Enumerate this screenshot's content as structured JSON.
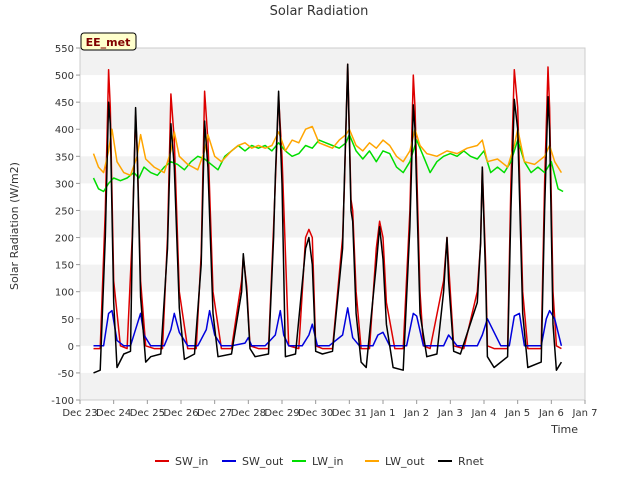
{
  "chart_data": {
    "type": "line",
    "title": "Solar Radiation",
    "xlabel": "Time",
    "ylabel": "Solar Radiation (W/m2)",
    "ylim": [
      -100,
      550
    ],
    "yticks": [
      -100,
      -50,
      0,
      50,
      100,
      150,
      200,
      250,
      300,
      350,
      400,
      450,
      500,
      550
    ],
    "xlim": [
      0,
      15
    ],
    "xticks": [
      {
        "pos": 0,
        "label": "Dec 23"
      },
      {
        "pos": 1,
        "label": "Dec 24"
      },
      {
        "pos": 2,
        "label": "Dec 25"
      },
      {
        "pos": 3,
        "label": "Dec 26"
      },
      {
        "pos": 4,
        "label": "Dec 27"
      },
      {
        "pos": 5,
        "label": "Dec 28"
      },
      {
        "pos": 6,
        "label": "Dec 29"
      },
      {
        "pos": 7,
        "label": "Dec 30"
      },
      {
        "pos": 8,
        "label": "Dec 31"
      },
      {
        "pos": 9,
        "label": "Jan 1"
      },
      {
        "pos": 10,
        "label": "Jan 2"
      },
      {
        "pos": 11,
        "label": "Jan 3"
      },
      {
        "pos": 12,
        "label": "Jan 4"
      },
      {
        "pos": 13,
        "label": "Jan 5"
      },
      {
        "pos": 14,
        "label": "Jan 6"
      },
      {
        "pos": 15,
        "label": "Jan 7"
      }
    ],
    "grid": "horizontal bands",
    "legend": "bottom",
    "annotation": "EE_met",
    "series": [
      {
        "name": "SW_in",
        "color": "#dd0000",
        "x": [
          0.4,
          0.6,
          0.75,
          0.85,
          0.9,
          1.0,
          1.2,
          1.4,
          1.55,
          1.65,
          1.7,
          1.8,
          1.95,
          2.2,
          2.45,
          2.6,
          2.7,
          2.8,
          2.95,
          3.2,
          3.45,
          3.6,
          3.7,
          3.8,
          3.95,
          4.2,
          4.5,
          4.8,
          4.85,
          4.95,
          5.05,
          5.3,
          5.6,
          5.75,
          5.8,
          5.9,
          6.0,
          6.2,
          6.5,
          6.7,
          6.8,
          6.9,
          7.0,
          7.2,
          7.5,
          7.8,
          7.85,
          7.95,
          8.05,
          8.1,
          8.2,
          8.35,
          8.6,
          8.8,
          8.9,
          9.0,
          9.1,
          9.35,
          9.6,
          9.8,
          9.9,
          9.95,
          10.1,
          10.2,
          10.4,
          10.8,
          10.9,
          10.95,
          11.1,
          11.4,
          11.8,
          11.9,
          11.95,
          12.05,
          12.1,
          12.3,
          12.7,
          12.8,
          12.9,
          13.0,
          13.15,
          13.3,
          13.7,
          13.8,
          13.9,
          13.95,
          14.05,
          14.15,
          14.3
        ],
        "y": [
          -5,
          -5,
          250,
          510,
          440,
          120,
          0,
          -5,
          200,
          425,
          360,
          120,
          0,
          -5,
          -5,
          200,
          465,
          380,
          100,
          -5,
          -5,
          170,
          470,
          380,
          100,
          -5,
          -5,
          120,
          165,
          110,
          0,
          -5,
          -5,
          220,
          300,
          460,
          350,
          0,
          -5,
          200,
          215,
          200,
          0,
          -5,
          -5,
          200,
          290,
          520,
          270,
          250,
          100,
          -5,
          -5,
          180,
          230,
          200,
          80,
          -5,
          -5,
          250,
          500,
          440,
          100,
          0,
          -5,
          120,
          200,
          150,
          0,
          -5,
          100,
          190,
          330,
          150,
          0,
          -5,
          -5,
          300,
          510,
          440,
          100,
          -5,
          -5,
          300,
          515,
          440,
          100,
          0,
          -5
        ]
      },
      {
        "name": "SW_out",
        "color": "#0000dd",
        "x": [
          0.4,
          0.7,
          0.85,
          0.95,
          1.1,
          1.3,
          1.5,
          1.7,
          1.8,
          1.9,
          2.1,
          2.5,
          2.7,
          2.8,
          2.95,
          3.2,
          3.5,
          3.75,
          3.85,
          4.0,
          4.2,
          4.5,
          4.9,
          5.0,
          5.1,
          5.5,
          5.8,
          5.95,
          6.05,
          6.2,
          6.6,
          6.8,
          6.9,
          7.05,
          7.4,
          7.8,
          7.95,
          8.1,
          8.3,
          8.7,
          8.85,
          9.0,
          9.2,
          9.7,
          9.9,
          10.0,
          10.2,
          10.8,
          10.95,
          11.2,
          11.8,
          11.95,
          12.1,
          12.5,
          12.75,
          12.9,
          13.05,
          13.2,
          13.7,
          13.85,
          13.95,
          14.1,
          14.3
        ],
        "y": [
          0,
          0,
          60,
          65,
          10,
          0,
          0,
          40,
          60,
          20,
          0,
          0,
          30,
          60,
          25,
          0,
          0,
          30,
          65,
          20,
          0,
          0,
          5,
          15,
          0,
          0,
          20,
          65,
          20,
          0,
          0,
          20,
          40,
          0,
          0,
          20,
          70,
          15,
          0,
          0,
          20,
          25,
          0,
          0,
          60,
          55,
          0,
          0,
          20,
          0,
          0,
          20,
          50,
          0,
          0,
          55,
          60,
          0,
          0,
          50,
          65,
          50,
          0
        ]
      },
      {
        "name": "LW_in",
        "color": "#00dd00",
        "x": [
          0.4,
          0.55,
          0.7,
          0.85,
          1.0,
          1.2,
          1.4,
          1.6,
          1.75,
          1.9,
          2.1,
          2.3,
          2.5,
          2.7,
          2.9,
          3.1,
          3.3,
          3.5,
          3.7,
          3.9,
          4.1,
          4.3,
          4.5,
          4.7,
          4.9,
          5.1,
          5.3,
          5.5,
          5.7,
          5.9,
          6.1,
          6.3,
          6.5,
          6.7,
          6.9,
          7.1,
          7.3,
          7.5,
          7.7,
          7.9,
          8.0,
          8.2,
          8.4,
          8.6,
          8.8,
          9.0,
          9.2,
          9.4,
          9.6,
          9.8,
          10.0,
          10.2,
          10.4,
          10.6,
          10.8,
          11.0,
          11.2,
          11.4,
          11.6,
          11.8,
          12.0,
          12.2,
          12.4,
          12.6,
          12.8,
          13.0,
          13.2,
          13.4,
          13.6,
          13.8,
          14.0,
          14.2,
          14.35
        ],
        "y": [
          310,
          290,
          285,
          300,
          310,
          305,
          310,
          320,
          310,
          330,
          320,
          315,
          330,
          340,
          335,
          325,
          340,
          350,
          345,
          335,
          325,
          350,
          360,
          370,
          360,
          370,
          365,
          370,
          360,
          375,
          360,
          350,
          355,
          370,
          365,
          380,
          375,
          370,
          365,
          375,
          390,
          360,
          345,
          360,
          340,
          360,
          355,
          330,
          320,
          340,
          380,
          350,
          320,
          340,
          350,
          355,
          350,
          360,
          350,
          345,
          360,
          320,
          330,
          320,
          340,
          380,
          340,
          320,
          330,
          320,
          340,
          290,
          285
        ]
      },
      {
        "name": "LW_out",
        "color": "#ffa500",
        "x": [
          0.4,
          0.55,
          0.7,
          0.85,
          0.95,
          1.1,
          1.3,
          1.5,
          1.7,
          1.8,
          1.95,
          2.2,
          2.5,
          2.7,
          2.8,
          2.95,
          3.2,
          3.5,
          3.7,
          3.8,
          4.0,
          4.2,
          4.5,
          4.7,
          4.9,
          5.1,
          5.3,
          5.5,
          5.7,
          5.9,
          6.1,
          6.3,
          6.5,
          6.7,
          6.9,
          7.1,
          7.3,
          7.5,
          7.7,
          7.9,
          8.0,
          8.2,
          8.4,
          8.6,
          8.8,
          9.0,
          9.2,
          9.4,
          9.6,
          9.8,
          9.95,
          10.1,
          10.3,
          10.6,
          10.9,
          11.2,
          11.5,
          11.8,
          11.95,
          12.1,
          12.4,
          12.7,
          12.9,
          13.0,
          13.2,
          13.5,
          13.8,
          13.95,
          14.1,
          14.3
        ],
        "y": [
          355,
          330,
          320,
          360,
          400,
          340,
          320,
          315,
          350,
          390,
          345,
          330,
          320,
          360,
          395,
          350,
          335,
          325,
          360,
          390,
          350,
          340,
          360,
          370,
          375,
          365,
          370,
          365,
          370,
          395,
          360,
          380,
          375,
          400,
          405,
          375,
          370,
          365,
          380,
          390,
          400,
          370,
          360,
          375,
          365,
          380,
          370,
          350,
          340,
          360,
          400,
          370,
          355,
          350,
          360,
          355,
          365,
          370,
          380,
          340,
          345,
          330,
          370,
          400,
          340,
          335,
          350,
          370,
          340,
          320
        ]
      },
      {
        "name": "Rnet",
        "color": "#000000",
        "x": [
          0.4,
          0.6,
          0.75,
          0.85,
          0.9,
          1.0,
          1.1,
          1.3,
          1.5,
          1.55,
          1.65,
          1.7,
          1.8,
          1.95,
          2.1,
          2.4,
          2.6,
          2.7,
          2.8,
          2.95,
          3.1,
          3.4,
          3.6,
          3.7,
          3.8,
          3.95,
          4.1,
          4.5,
          4.8,
          4.85,
          4.95,
          5.05,
          5.2,
          5.6,
          5.75,
          5.8,
          5.9,
          6.0,
          6.1,
          6.4,
          6.7,
          6.8,
          6.9,
          7.0,
          7.2,
          7.5,
          7.8,
          7.85,
          7.95,
          8.05,
          8.1,
          8.2,
          8.35,
          8.5,
          8.8,
          8.9,
          9.0,
          9.1,
          9.3,
          9.6,
          9.8,
          9.9,
          9.95,
          10.1,
          10.3,
          10.6,
          10.8,
          10.9,
          10.95,
          11.1,
          11.3,
          11.8,
          11.9,
          11.95,
          12.05,
          12.1,
          12.3,
          12.7,
          12.8,
          12.9,
          13.0,
          13.15,
          13.3,
          13.7,
          13.8,
          13.9,
          13.95,
          14.05,
          14.15,
          14.3
        ],
        "y": [
          -50,
          -45,
          200,
          450,
          410,
          80,
          -40,
          -15,
          -10,
          180,
          440,
          360,
          90,
          -30,
          -20,
          -15,
          180,
          410,
          330,
          70,
          -25,
          -15,
          150,
          415,
          330,
          60,
          -20,
          -15,
          100,
          170,
          100,
          -5,
          -20,
          -15,
          200,
          310,
          470,
          300,
          -20,
          -15,
          180,
          200,
          150,
          -10,
          -15,
          -10,
          180,
          300,
          520,
          250,
          230,
          60,
          -30,
          -40,
          150,
          220,
          160,
          40,
          -40,
          -45,
          220,
          445,
          400,
          60,
          -20,
          -15,
          100,
          200,
          120,
          -10,
          -15,
          80,
          190,
          330,
          120,
          -20,
          -40,
          -20,
          250,
          455,
          400,
          60,
          -40,
          -30,
          250,
          460,
          400,
          40,
          -45,
          -30
        ]
      }
    ]
  }
}
